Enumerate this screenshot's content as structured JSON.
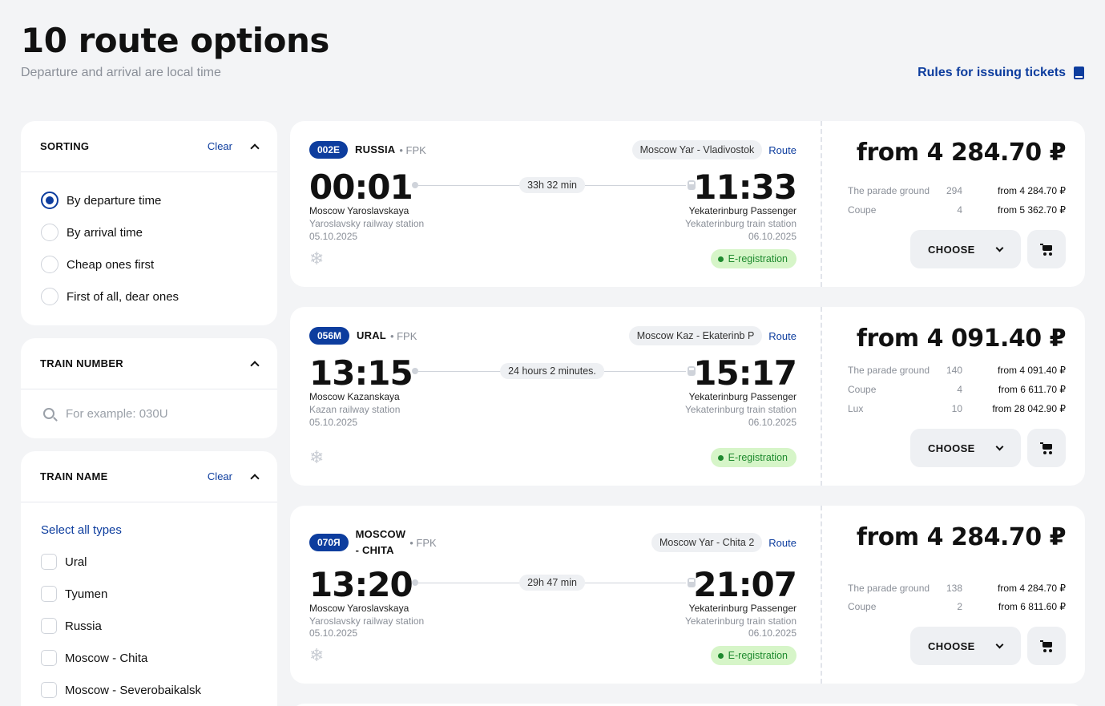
{
  "header": {
    "title": "10 route options",
    "subtitle": "Departure and arrival are local time",
    "rules_link": "Rules for issuing tickets"
  },
  "sorting": {
    "title": "SORTING",
    "clear": "Clear",
    "options": [
      "By departure time",
      "By arrival time",
      "Cheap ones first",
      "First of all, dear ones"
    ],
    "selected": 0
  },
  "train_number": {
    "title": "TRAIN NUMBER",
    "placeholder": "For example: 030U",
    "value": ""
  },
  "train_name": {
    "title": "TRAIN NAME",
    "clear": "Clear",
    "select_all": "Select all types",
    "options": [
      "Ural",
      "Tyumen",
      "Russia",
      "Moscow - Chita",
      "Moscow - Severobaikalsk"
    ]
  },
  "labels": {
    "route": "Route",
    "choose": "CHOOSE",
    "ereg": "E-registration"
  },
  "trains": [
    {
      "number": "002E",
      "name": "RUSSIA",
      "carrier": "• FPK",
      "direction": "Moscow Yar - Vladivostok",
      "dep_time": "00:01",
      "arr_time": "11:33",
      "duration": "33h 32 min",
      "dep_station": "Moscow Yaroslavskaya",
      "dep_sub": "Yaroslavsky railway station",
      "dep_date": "05.10.2025",
      "arr_station": "Yekaterinburg Passenger",
      "arr_sub": "Yekaterinburg train station",
      "arr_date": "06.10.2025",
      "price": "from 4 284.70 ₽",
      "classes": [
        {
          "name": "The parade ground",
          "seats": "294",
          "price": "from 4 284.70 ₽"
        },
        {
          "name": "Coupe",
          "seats": "4",
          "price": "from 5 362.70 ₽"
        }
      ]
    },
    {
      "number": "056M",
      "name": "URAL",
      "carrier": "• FPK",
      "direction": "Moscow Kaz - Ekaterinb P",
      "dep_time": "13:15",
      "arr_time": "15:17",
      "duration": "24 hours 2 minutes.",
      "dep_station": "Moscow Kazanskaya",
      "dep_sub": "Kazan railway station",
      "dep_date": "05.10.2025",
      "arr_station": "Yekaterinburg Passenger",
      "arr_sub": "Yekaterinburg train station",
      "arr_date": "06.10.2025",
      "price": "from 4 091.40 ₽",
      "classes": [
        {
          "name": "The parade ground",
          "seats": "140",
          "price": "from 4 091.40 ₽"
        },
        {
          "name": "Coupe",
          "seats": "4",
          "price": "from 6 611.70 ₽"
        },
        {
          "name": "Lux",
          "seats": "10",
          "price": "from 28 042.90 ₽"
        }
      ]
    },
    {
      "number": "070Я",
      "name_line1": "MOSCOW",
      "name_line2": "- CHITA",
      "carrier": "• FPK",
      "direction": "Moscow Yar - Chita 2",
      "dep_time": "13:20",
      "arr_time": "21:07",
      "duration": "29h 47 min",
      "dep_station": "Moscow Yaroslavskaya",
      "dep_sub": "Yaroslavsky railway station",
      "dep_date": "05.10.2025",
      "arr_station": "Yekaterinburg Passenger",
      "arr_sub": "Yekaterinburg train station",
      "arr_date": "06.10.2025",
      "price": "from 4 284.70 ₽",
      "classes": [
        {
          "name": "The parade ground",
          "seats": "138",
          "price": "from 4 284.70 ₽"
        },
        {
          "name": "Coupe",
          "seats": "2",
          "price": "from 6 811.60 ₽"
        }
      ]
    }
  ],
  "colors": {
    "accent": "#0d3d9e",
    "background": "#f3f4f6",
    "ereg_bg": "#d6f5c8",
    "ereg_fg": "#1e8a2e"
  },
  "icons": [
    "book-icon",
    "chevron-up-icon",
    "search-icon",
    "snowflake-icon",
    "train-icon",
    "chevron-down-icon",
    "cart-icon"
  ]
}
